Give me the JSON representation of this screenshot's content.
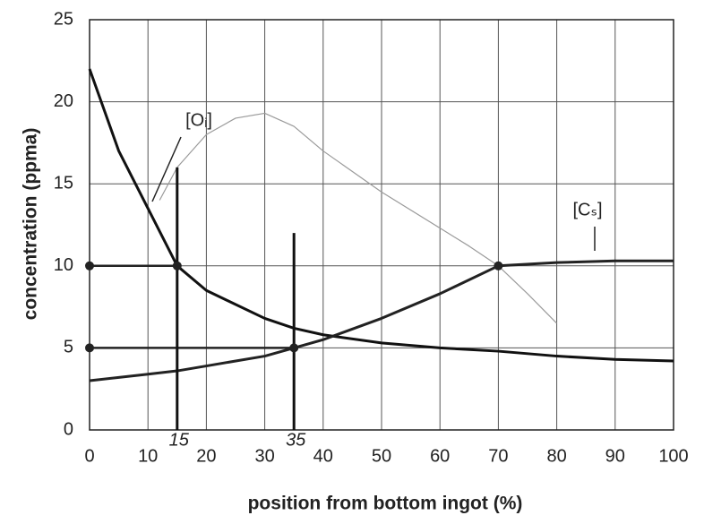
{
  "chart_data": {
    "type": "line",
    "xlabel": "position from bottom ingot (%)",
    "ylabel": "concentration (ppma)",
    "x": [
      0,
      5,
      10,
      15,
      20,
      30,
      35,
      40,
      50,
      60,
      70,
      80,
      90,
      100
    ],
    "series": [
      {
        "name": "[Oᵢ]",
        "color": "#111111",
        "values": [
          22,
          17,
          13.5,
          10,
          8.5,
          6.8,
          6.2,
          5.8,
          5.3,
          5,
          4.8,
          4.5,
          4.3,
          4.2
        ]
      },
      {
        "name": "[Cₛ]",
        "color": "#222222",
        "values": [
          3,
          3.2,
          3.4,
          3.6,
          3.9,
          4.5,
          5,
          5.5,
          6.8,
          8.3,
          10,
          10.2,
          10.3,
          10.3
        ]
      },
      {
        "color": "#9a9a9a",
        "x": [
          12,
          15,
          20,
          25,
          30,
          35,
          40,
          50,
          60,
          65,
          70,
          75,
          80
        ],
        "values": [
          14,
          16,
          18,
          19,
          19.3,
          18.5,
          17,
          14.5,
          12.3,
          11.2,
          10,
          8.3,
          6.5
        ]
      }
    ],
    "guides": [
      {
        "x": [
          0,
          15
        ],
        "values": [
          10,
          10
        ]
      },
      {
        "x": [
          0,
          35
        ],
        "values": [
          5,
          5
        ]
      }
    ],
    "markers": {
      "x": [
        0,
        15,
        0,
        35,
        70
      ],
      "values": [
        10,
        10,
        5,
        5,
        10
      ]
    },
    "annotations": [
      {
        "text": "15",
        "x": 15,
        "y_range": [
          0,
          16
        ]
      },
      {
        "text": "35",
        "x": 35,
        "y_range": [
          0,
          12
        ]
      }
    ],
    "xlim": [
      0,
      100
    ],
    "xticks": [
      0,
      10,
      20,
      30,
      40,
      50,
      60,
      70,
      80,
      90,
      100
    ],
    "ylim": [
      0,
      25
    ],
    "yticks": [
      0,
      5,
      10,
      15,
      20,
      25
    ],
    "grid": true
  }
}
